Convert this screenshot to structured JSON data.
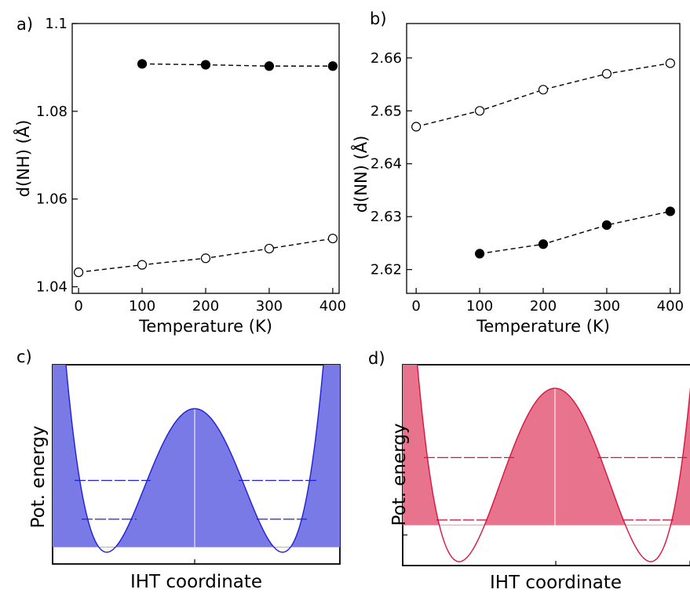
{
  "chart_data": [
    {
      "type": "scatter",
      "panel": "a)",
      "xlabel": "Temperature (K)",
      "ylabel": "d(NH) (Å)",
      "xlim": [
        -10,
        410
      ],
      "ylim": [
        1.0385,
        1.1
      ],
      "x_ticks": [
        0,
        100,
        200,
        300,
        400
      ],
      "x_tick_labels": [
        "0",
        "100",
        "200",
        "300",
        "400"
      ],
      "y_ticks": [
        1.04,
        1.06,
        1.08,
        1.1
      ],
      "y_tick_labels": [
        "1.04",
        "1.06",
        "1.08",
        "1.1"
      ],
      "series": [
        {
          "marker": "filled",
          "color": "#000000",
          "line": "dashed",
          "x": [
            100,
            200,
            300,
            400
          ],
          "y": [
            1.0908,
            1.0906,
            1.0903,
            1.0903
          ]
        },
        {
          "marker": "open",
          "color": "#000000",
          "line": "dashed",
          "x": [
            0,
            100,
            200,
            300,
            400
          ],
          "y": [
            1.0433,
            1.045,
            1.0465,
            1.0487,
            1.051
          ]
        }
      ],
      "grid": false
    },
    {
      "type": "scatter",
      "panel": "b)",
      "xlabel": "Temperature (K)",
      "ylabel": "d(NN) (Å)",
      "xlim": [
        -15,
        415
      ],
      "ylim": [
        2.6155,
        2.6665
      ],
      "x_ticks": [
        0,
        100,
        200,
        300,
        400
      ],
      "x_tick_labels": [
        "0",
        "100",
        "200",
        "300",
        "400"
      ],
      "y_ticks": [
        2.62,
        2.63,
        2.64,
        2.65,
        2.66
      ],
      "y_tick_labels": [
        "2.62",
        "2.63",
        "2.64",
        "2.65",
        "2.66"
      ],
      "series": [
        {
          "marker": "open",
          "color": "#000000",
          "line": "dashed",
          "x": [
            0,
            100,
            200,
            300,
            400
          ],
          "y": [
            2.647,
            2.65,
            2.654,
            2.657,
            2.659
          ]
        },
        {
          "marker": "filled",
          "color": "#000000",
          "line": "dashed",
          "x": [
            100,
            200,
            300,
            400
          ],
          "y": [
            2.623,
            2.6248,
            2.6284,
            2.631
          ]
        }
      ],
      "grid": false
    },
    {
      "type": "line",
      "panel": "c)",
      "xlabel": "IHT coordinate",
      "ylabel": "Pot. energy",
      "color": "#1f1fd8",
      "fill_color": "#7a7ae6",
      "x_tick_count": 3,
      "y_tick_count": 7,
      "curve": "double-well",
      "barrier": 0.7,
      "levels": [
        0.5,
        0.23
      ],
      "fill_level": 0.035,
      "grid": false
    },
    {
      "type": "line",
      "panel": "d)",
      "xlabel": "IHT coordinate",
      "ylabel": "Pot. energy",
      "color": "#dc143c",
      "fill_color": "#e8738d",
      "x_tick_count": 3,
      "y_tick_count": 7,
      "curve": "double-well",
      "barrier": 0.93,
      "levels": [
        0.6,
        0.24
      ],
      "fill_level": 0.21,
      "grid": false
    }
  ]
}
